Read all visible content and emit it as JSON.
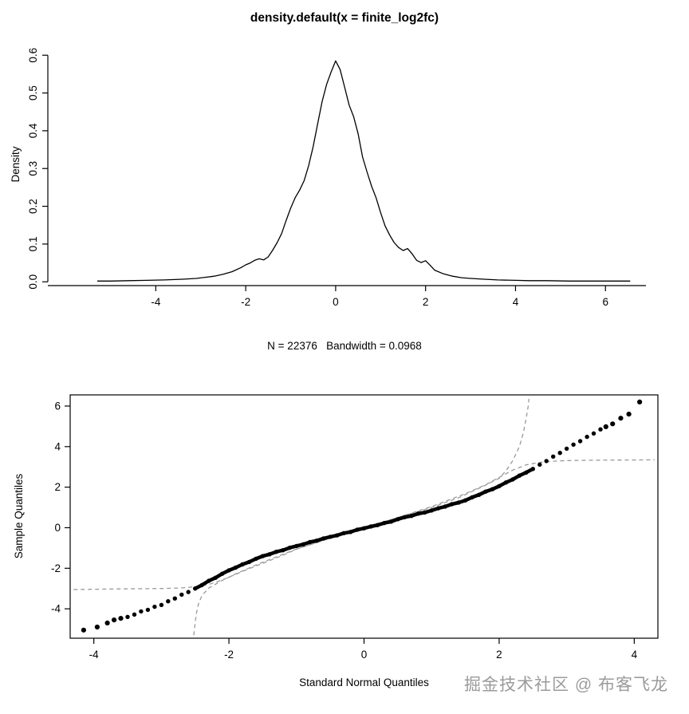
{
  "page": {
    "background": "#ffffff",
    "watermark": "掘金技术社区 @ 布客飞龙"
  },
  "chart_data": [
    {
      "id": "density-plot",
      "type": "line",
      "title": "density.default(x = finite_log2fc)",
      "xlabel": "",
      "ylabel": "Density",
      "subtitle": "N = 22376   Bandwidth = 0.0968",
      "xlim": [
        -6.4,
        6.9
      ],
      "ylim": [
        -0.01,
        0.63
      ],
      "x_ticks": [
        -4,
        -2,
        0,
        2,
        4,
        6
      ],
      "y_ticks": [
        "0.0",
        "0.1",
        "0.2",
        "0.3",
        "0.4",
        "0.5",
        "0.6"
      ],
      "line_color": "#000000",
      "grid": false,
      "curve": [
        [
          -5.3,
          0.002
        ],
        [
          -5.0,
          0.002
        ],
        [
          -4.6,
          0.003
        ],
        [
          -4.2,
          0.004
        ],
        [
          -3.8,
          0.005
        ],
        [
          -3.4,
          0.007
        ],
        [
          -3.1,
          0.009
        ],
        [
          -2.9,
          0.012
        ],
        [
          -2.7,
          0.015
        ],
        [
          -2.5,
          0.02
        ],
        [
          -2.3,
          0.027
        ],
        [
          -2.1,
          0.038
        ],
        [
          -2.0,
          0.045
        ],
        [
          -1.9,
          0.05
        ],
        [
          -1.8,
          0.057
        ],
        [
          -1.7,
          0.061
        ],
        [
          -1.6,
          0.058
        ],
        [
          -1.5,
          0.066
        ],
        [
          -1.4,
          0.084
        ],
        [
          -1.3,
          0.104
        ],
        [
          -1.2,
          0.128
        ],
        [
          -1.1,
          0.163
        ],
        [
          -1.0,
          0.195
        ],
        [
          -0.9,
          0.223
        ],
        [
          -0.8,
          0.243
        ],
        [
          -0.7,
          0.268
        ],
        [
          -0.6,
          0.308
        ],
        [
          -0.5,
          0.358
        ],
        [
          -0.4,
          0.418
        ],
        [
          -0.3,
          0.478
        ],
        [
          -0.2,
          0.523
        ],
        [
          -0.1,
          0.556
        ],
        [
          0.0,
          0.585
        ],
        [
          0.1,
          0.562
        ],
        [
          0.2,
          0.515
        ],
        [
          0.3,
          0.468
        ],
        [
          0.4,
          0.437
        ],
        [
          0.5,
          0.392
        ],
        [
          0.6,
          0.33
        ],
        [
          0.7,
          0.29
        ],
        [
          0.8,
          0.253
        ],
        [
          0.9,
          0.222
        ],
        [
          1.0,
          0.183
        ],
        [
          1.1,
          0.148
        ],
        [
          1.2,
          0.124
        ],
        [
          1.3,
          0.104
        ],
        [
          1.4,
          0.091
        ],
        [
          1.5,
          0.083
        ],
        [
          1.6,
          0.088
        ],
        [
          1.7,
          0.074
        ],
        [
          1.8,
          0.057
        ],
        [
          1.9,
          0.051
        ],
        [
          2.0,
          0.056
        ],
        [
          2.1,
          0.044
        ],
        [
          2.2,
          0.031
        ],
        [
          2.4,
          0.021
        ],
        [
          2.6,
          0.015
        ],
        [
          2.8,
          0.011
        ],
        [
          3.0,
          0.009
        ],
        [
          3.3,
          0.007
        ],
        [
          3.6,
          0.005
        ],
        [
          4.0,
          0.004
        ],
        [
          4.3,
          0.003
        ],
        [
          4.7,
          0.003
        ],
        [
          5.2,
          0.002
        ],
        [
          5.7,
          0.002
        ],
        [
          6.1,
          0.002
        ],
        [
          6.4,
          0.002
        ],
        [
          6.55,
          0.002
        ]
      ]
    },
    {
      "id": "qq-plot",
      "type": "scatter",
      "title": "",
      "xlabel": "Standard Normal Quantiles",
      "ylabel": "Sample Quantiles",
      "xlim": [
        -4.35,
        4.35
      ],
      "ylim": [
        -5.45,
        6.55
      ],
      "x_ticks": [
        -4,
        -2,
        0,
        2,
        4
      ],
      "y_ticks": [
        -4,
        -2,
        0,
        2,
        4,
        6
      ],
      "point_color": "#000000",
      "dash_color": "#999999",
      "grid": false,
      "points": [
        [
          -3.5,
          -4.4
        ],
        [
          -3.4,
          -4.28
        ],
        [
          -3.3,
          -4.13
        ],
        [
          -3.2,
          -4.05
        ],
        [
          -3.1,
          -3.9
        ],
        [
          -3.0,
          -3.81
        ],
        [
          -2.9,
          -3.63
        ],
        [
          -2.8,
          -3.49
        ],
        [
          -2.7,
          -3.3
        ],
        [
          -2.6,
          -3.17
        ],
        [
          -2.5,
          -3.0
        ],
        [
          -2.4,
          -2.83
        ],
        [
          -2.3,
          -2.62
        ],
        [
          -2.2,
          -2.47
        ],
        [
          -2.1,
          -2.27
        ],
        [
          -2.0,
          -2.1
        ],
        [
          -1.9,
          -1.97
        ],
        [
          -1.8,
          -1.81
        ],
        [
          -1.7,
          -1.69
        ],
        [
          -1.6,
          -1.53
        ],
        [
          -1.5,
          -1.4
        ],
        [
          -1.4,
          -1.31
        ],
        [
          -1.3,
          -1.19
        ],
        [
          -1.2,
          -1.11
        ],
        [
          -1.1,
          -0.99
        ],
        [
          -1.0,
          -0.9
        ],
        [
          -0.9,
          -0.82
        ],
        [
          -0.8,
          -0.71
        ],
        [
          -0.7,
          -0.64
        ],
        [
          -0.6,
          -0.53
        ],
        [
          -0.5,
          -0.45
        ],
        [
          -0.4,
          -0.38
        ],
        [
          -0.3,
          -0.27
        ],
        [
          -0.2,
          -0.21
        ],
        [
          -0.1,
          -0.1
        ],
        [
          0.0,
          -0.03
        ],
        [
          0.1,
          0.06
        ],
        [
          0.2,
          0.13
        ],
        [
          0.3,
          0.23
        ],
        [
          0.4,
          0.3
        ],
        [
          0.5,
          0.42
        ],
        [
          0.6,
          0.52
        ],
        [
          0.7,
          0.58
        ],
        [
          0.8,
          0.69
        ],
        [
          0.9,
          0.75
        ],
        [
          1.0,
          0.85
        ],
        [
          1.1,
          0.96
        ],
        [
          1.2,
          1.04
        ],
        [
          1.3,
          1.16
        ],
        [
          1.4,
          1.24
        ],
        [
          1.5,
          1.35
        ],
        [
          1.6,
          1.5
        ],
        [
          1.7,
          1.62
        ],
        [
          1.8,
          1.78
        ],
        [
          1.9,
          1.9
        ],
        [
          2.0,
          2.05
        ],
        [
          2.1,
          2.23
        ],
        [
          2.2,
          2.38
        ],
        [
          2.3,
          2.57
        ],
        [
          2.4,
          2.72
        ],
        [
          2.5,
          2.9
        ],
        [
          2.6,
          3.11
        ],
        [
          2.7,
          3.29
        ],
        [
          2.8,
          3.51
        ],
        [
          2.9,
          3.69
        ],
        [
          3.0,
          3.9
        ],
        [
          3.1,
          4.1
        ],
        [
          3.2,
          4.27
        ],
        [
          3.3,
          4.48
        ],
        [
          3.4,
          4.65
        ],
        [
          3.5,
          4.85
        ]
      ],
      "outliers": [
        [
          -4.15,
          -5.05
        ],
        [
          -3.95,
          -4.9
        ],
        [
          -3.8,
          -4.7
        ],
        [
          -3.7,
          -4.55
        ],
        [
          -3.6,
          -4.47
        ],
        [
          3.58,
          4.98
        ],
        [
          3.68,
          5.12
        ],
        [
          3.8,
          5.4
        ],
        [
          3.92,
          5.6
        ],
        [
          4.08,
          6.2
        ]
      ],
      "dashed_reference_curves": [
        {
          "name": "flat-tail-reference",
          "points": [
            [
              -4.3,
              -3.05
            ],
            [
              -3.6,
              -3.02
            ],
            [
              -3.0,
              -3.0
            ],
            [
              -2.7,
              -2.97
            ],
            [
              -2.5,
              -2.91
            ],
            [
              -2.3,
              -2.8
            ],
            [
              -2.1,
              -2.58
            ],
            [
              -1.9,
              -2.3
            ],
            [
              -1.7,
              -2.02
            ],
            [
              -1.5,
              -1.76
            ],
            [
              -1.2,
              -1.36
            ],
            [
              -1.0,
              -1.06
            ],
            [
              -0.5,
              -0.52
            ],
            [
              0.0,
              0.0
            ],
            [
              0.5,
              0.5
            ],
            [
              1.0,
              1.04
            ],
            [
              1.5,
              1.68
            ],
            [
              1.8,
              2.12
            ],
            [
              2.0,
              2.48
            ],
            [
              2.2,
              2.84
            ],
            [
              2.4,
              3.1
            ],
            [
              2.6,
              3.22
            ],
            [
              2.8,
              3.28
            ],
            [
              3.0,
              3.31
            ],
            [
              3.5,
              3.33
            ],
            [
              4.0,
              3.34
            ],
            [
              4.3,
              3.35
            ]
          ]
        },
        {
          "name": "steep-tail-reference",
          "points": [
            [
              -2.52,
              -5.3
            ],
            [
              -2.5,
              -4.7
            ],
            [
              -2.48,
              -4.2
            ],
            [
              -2.45,
              -3.75
            ],
            [
              -2.4,
              -3.35
            ],
            [
              -2.3,
              -2.98
            ],
            [
              -2.1,
              -2.6
            ],
            [
              -1.9,
              -2.28
            ],
            [
              -1.6,
              -1.84
            ],
            [
              -1.3,
              -1.44
            ],
            [
              -1.0,
              -1.05
            ],
            [
              -0.5,
              -0.51
            ],
            [
              0.0,
              0.0
            ],
            [
              0.5,
              0.5
            ],
            [
              1.0,
              1.0
            ],
            [
              1.4,
              1.48
            ],
            [
              1.8,
              2.1
            ],
            [
              2.0,
              2.44
            ],
            [
              2.1,
              2.8
            ],
            [
              2.2,
              3.3
            ],
            [
              2.3,
              4.0
            ],
            [
              2.36,
              4.7
            ],
            [
              2.4,
              5.4
            ],
            [
              2.43,
              6.0
            ],
            [
              2.44,
              6.35
            ]
          ]
        }
      ]
    }
  ]
}
